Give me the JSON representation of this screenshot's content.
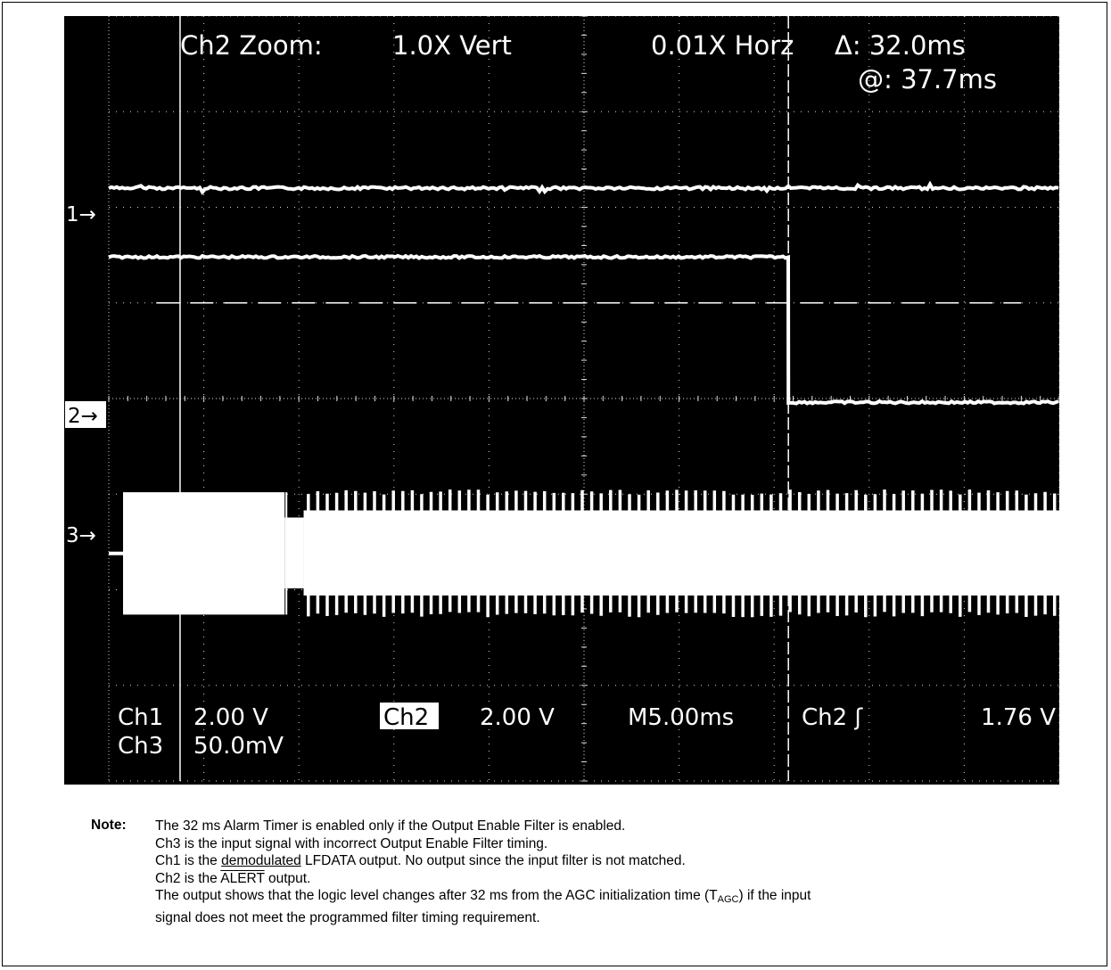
{
  "chart_data": {
    "type": "line",
    "title": "Ch2 Zoom:",
    "zoom": {
      "label": "Ch2 Zoom:",
      "vert": "1.0X Vert",
      "horz": "0.01X Horz"
    },
    "cursor_readout": {
      "delta": "Δ: 32.0ms",
      "at": "@: 37.7ms"
    },
    "horizontal_scale": "M5.00ms",
    "trigger": {
      "label": "Ch2 ʃ",
      "level": "1.76 V"
    },
    "channel_scales": [
      {
        "name": "Ch1",
        "scale": "2.00 V"
      },
      {
        "name": "Ch2",
        "scale": "2.00 V"
      },
      {
        "name": "Ch3",
        "scale": "50.0mV"
      }
    ],
    "channel_markers": [
      "1→",
      "2→",
      "3→"
    ],
    "grid": true,
    "x_divisions": 10,
    "y_divisions": 8,
    "cursor_positions_div": [
      0.75,
      7.15
    ],
    "time_per_div_ms": 5,
    "series": [
      {
        "name": "Ch1",
        "kind": "flat",
        "x_div": [
          0,
          10
        ],
        "y_div": [
          6.2,
          6.2
        ],
        "color": "#ffffff"
      },
      {
        "name": "Ch2",
        "kind": "step",
        "x_div": [
          0,
          7.15,
          7.15,
          10
        ],
        "y_div": [
          5.48,
          5.48,
          3.96,
          3.96
        ],
        "color": "#ffffff"
      },
      {
        "name": "Ch3",
        "kind": "burst",
        "baseline_div": 2.38,
        "carrier_on_div": [
          0.15,
          1.85
        ],
        "carrier_on_envelope_div": [
          1.74,
          3.02
        ],
        "gap_div": [
          1.85,
          2.05
        ],
        "pulsed_from_div": 2.05,
        "pulsed_envelope_div": [
          1.94,
          2.83
        ],
        "spike_envelope_div": [
          1.74,
          3.02
        ],
        "pulse_count": 80,
        "color": "#ffffff"
      }
    ],
    "levels": {
      "dashed_threshold_div": 5.0,
      "dotted_level_div": 4.0
    }
  },
  "note": {
    "label": "Note:",
    "line1": "The 32 ms Alarm Timer is enabled only if the Output Enable Filter is enabled.",
    "line2": "Ch3 is the input signal with incorrect Output Enable Filter timing.",
    "line3": {
      "before": "Ch1 is the ",
      "underlined": "demodulated",
      "after": " LFDATA output. No output since the input filter is not matched."
    },
    "line4": {
      "before": "Ch2 is the ",
      "overlined": "ALERT",
      "after": " output."
    },
    "line5": {
      "before": "The output shows that the logic level changes after 32 ms from the AGC initialization time (T",
      "subscript": "AGC",
      "after": ") if the input"
    },
    "line6": "signal does not meet the programmed filter timing requirement."
  }
}
